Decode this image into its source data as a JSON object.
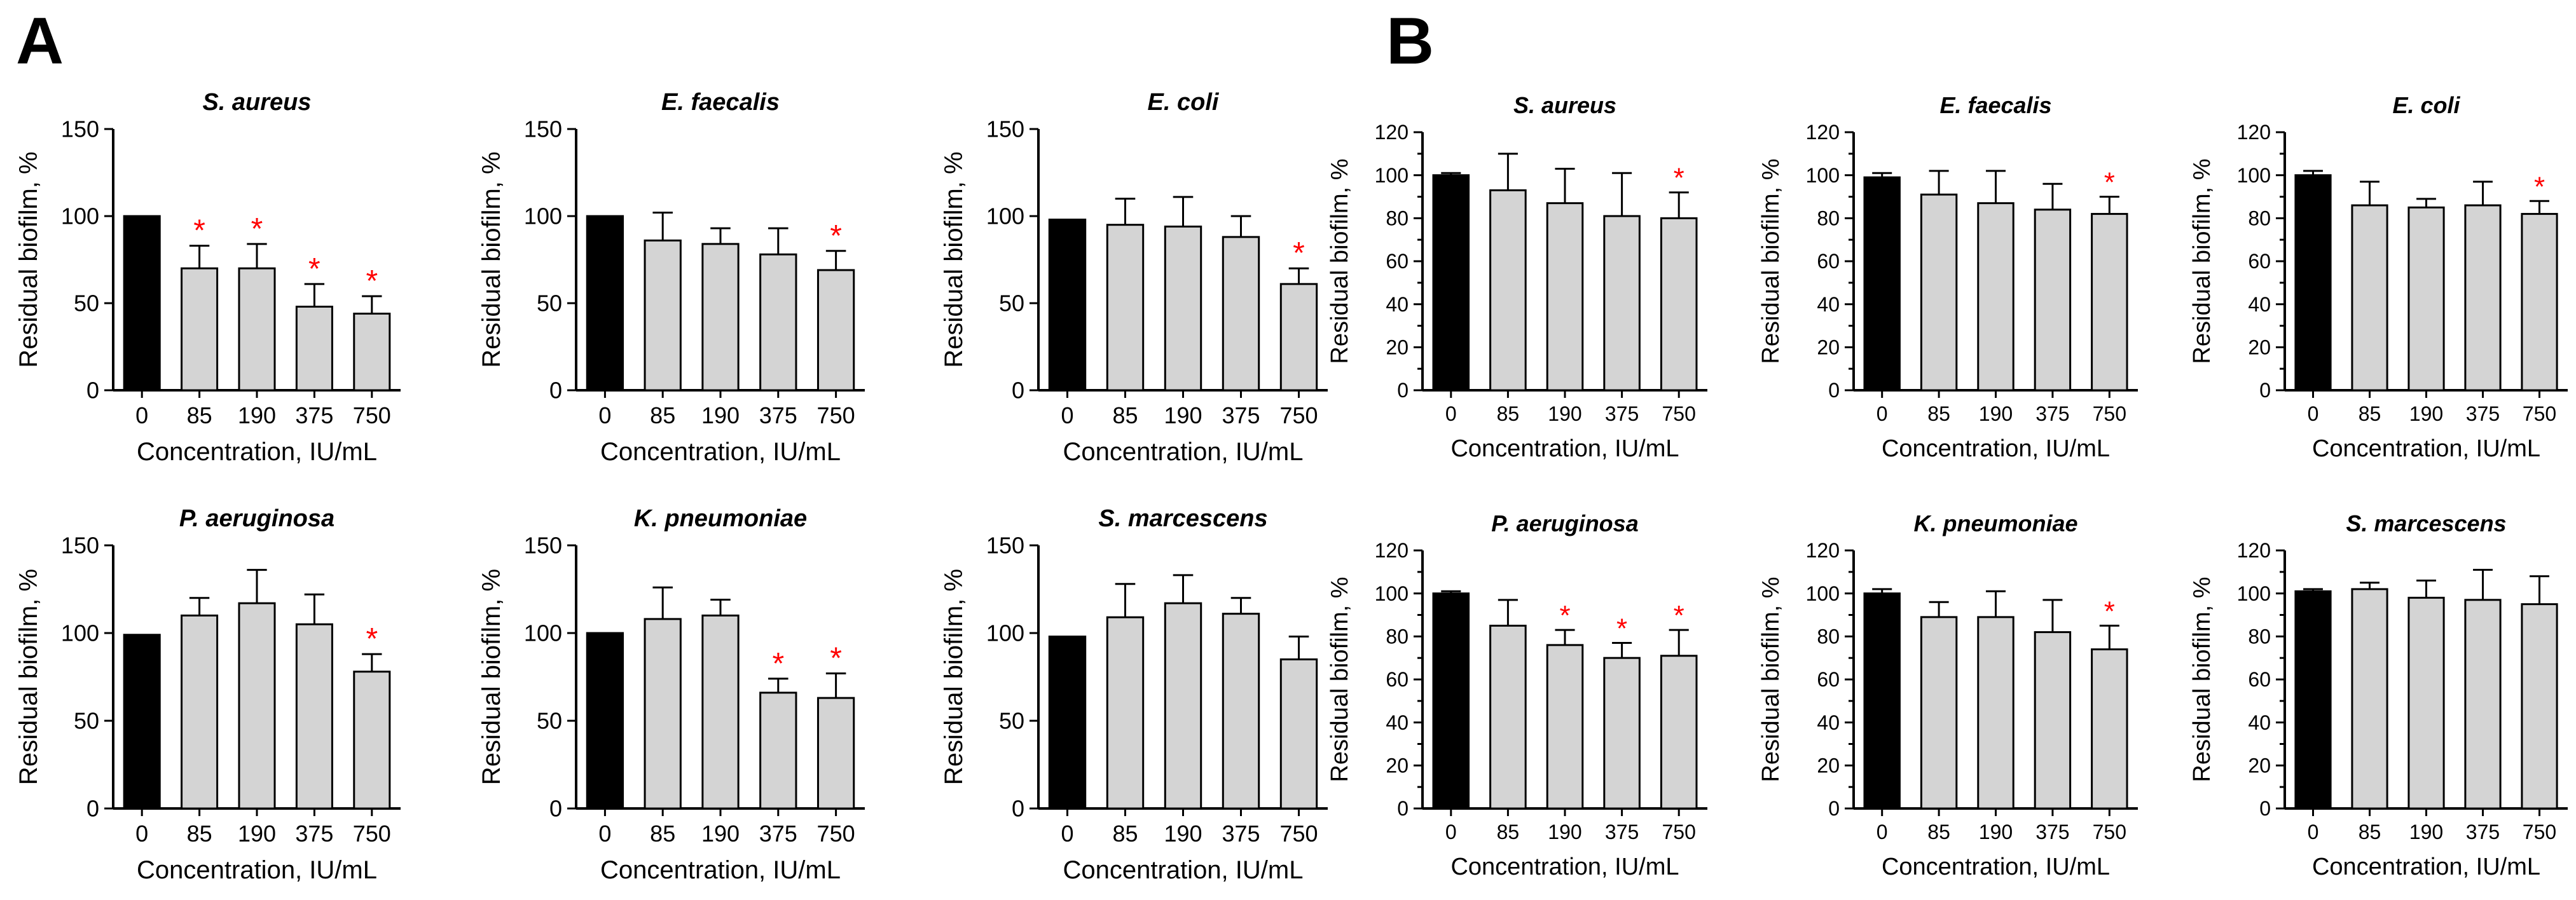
{
  "panels": [
    {
      "letter": "A"
    },
    {
      "letter": "B"
    }
  ],
  "colors": {
    "control_bar": "#000000",
    "treatment_bar": "#d4d4d4",
    "bar_outline": "#000000",
    "significance": "#ff0000",
    "axis": "#000000"
  },
  "chart_data": [
    {
      "panel": "A",
      "type": "bar",
      "title": "S. aureus",
      "xlabel": "Concentration, IU/mL",
      "ylabel": "Residual biofilm, %",
      "categories": [
        "0",
        "85",
        "190",
        "375",
        "750"
      ],
      "values": [
        100,
        70,
        70,
        48,
        44
      ],
      "errors": [
        0,
        13,
        14,
        13,
        10
      ],
      "significant": [
        false,
        true,
        true,
        true,
        true
      ],
      "ylim": [
        0,
        150
      ],
      "yticks": [
        0,
        50,
        100,
        150
      ]
    },
    {
      "panel": "A",
      "type": "bar",
      "title": "E. faecalis",
      "xlabel": "Concentration, IU/mL",
      "ylabel": "Residual biofilm, %",
      "categories": [
        "0",
        "85",
        "190",
        "375",
        "750"
      ],
      "values": [
        100,
        86,
        84,
        78,
        69
      ],
      "errors": [
        0,
        16,
        9,
        15,
        11
      ],
      "significant": [
        false,
        false,
        false,
        false,
        true
      ],
      "ylim": [
        0,
        150
      ],
      "yticks": [
        0,
        50,
        100,
        150
      ]
    },
    {
      "panel": "A",
      "type": "bar",
      "title": "E. coli",
      "xlabel": "Concentration, IU/mL",
      "ylabel": "Residual biofilm, %",
      "categories": [
        "0",
        "85",
        "190",
        "375",
        "750"
      ],
      "values": [
        98,
        95,
        94,
        88,
        61
      ],
      "errors": [
        0,
        15,
        17,
        12,
        9
      ],
      "significant": [
        false,
        false,
        false,
        false,
        true
      ],
      "ylim": [
        0,
        150
      ],
      "yticks": [
        0,
        50,
        100,
        150
      ]
    },
    {
      "panel": "A",
      "type": "bar",
      "title": "P. aeruginosa",
      "xlabel": "Concentration, IU/mL",
      "ylabel": "Residual biofilm, %",
      "categories": [
        "0",
        "85",
        "190",
        "375",
        "750"
      ],
      "values": [
        99,
        110,
        117,
        105,
        78
      ],
      "errors": [
        0,
        10,
        19,
        17,
        10
      ],
      "significant": [
        false,
        false,
        false,
        false,
        true
      ],
      "ylim": [
        0,
        150
      ],
      "yticks": [
        0,
        50,
        100,
        150
      ]
    },
    {
      "panel": "A",
      "type": "bar",
      "title": "K. pneumoniae",
      "xlabel": "Concentration, IU/mL",
      "ylabel": "Residual biofilm, %",
      "categories": [
        "0",
        "85",
        "190",
        "375",
        "750"
      ],
      "values": [
        100,
        108,
        110,
        66,
        63
      ],
      "errors": [
        0,
        18,
        9,
        8,
        14
      ],
      "significant": [
        false,
        false,
        false,
        true,
        true
      ],
      "ylim": [
        0,
        150
      ],
      "yticks": [
        0,
        50,
        100,
        150
      ]
    },
    {
      "panel": "A",
      "type": "bar",
      "title": "S. marcescens",
      "xlabel": "Concentration, IU/mL",
      "ylabel": "Residual biofilm, %",
      "categories": [
        "0",
        "85",
        "190",
        "375",
        "750"
      ],
      "values": [
        98,
        109,
        117,
        111,
        85
      ],
      "errors": [
        0,
        19,
        16,
        9,
        13
      ],
      "significant": [
        false,
        false,
        false,
        false,
        false
      ],
      "ylim": [
        0,
        150
      ],
      "yticks": [
        0,
        50,
        100,
        150
      ]
    },
    {
      "panel": "B",
      "type": "bar",
      "title": "S. aureus",
      "xlabel": "Concentration, IU/mL",
      "ylabel": "Residual biofilm, %",
      "categories": [
        "0",
        "85",
        "190",
        "375",
        "750"
      ],
      "values": [
        100,
        93,
        87,
        81,
        80
      ],
      "errors": [
        1,
        17,
        16,
        20,
        12
      ],
      "significant": [
        false,
        false,
        false,
        false,
        true
      ],
      "ylim": [
        0,
        120
      ],
      "yticks": [
        0,
        10,
        20,
        30,
        40,
        50,
        60,
        70,
        80,
        90,
        100,
        110,
        120
      ],
      "tick_labels": [
        0,
        20,
        40,
        60,
        80,
        100,
        120
      ]
    },
    {
      "panel": "B",
      "type": "bar",
      "title": "E. faecalis",
      "xlabel": "Concentration, IU/mL",
      "ylabel": "Residual biofilm, %",
      "categories": [
        "0",
        "85",
        "190",
        "375",
        "750"
      ],
      "values": [
        99,
        91,
        87,
        84,
        82
      ],
      "errors": [
        2,
        11,
        15,
        12,
        8
      ],
      "significant": [
        false,
        false,
        false,
        false,
        true
      ],
      "ylim": [
        0,
        120
      ],
      "yticks": [
        0,
        10,
        20,
        30,
        40,
        50,
        60,
        70,
        80,
        90,
        100,
        110,
        120
      ],
      "tick_labels": [
        0,
        20,
        40,
        60,
        80,
        100,
        120
      ]
    },
    {
      "panel": "B",
      "type": "bar",
      "title": "E. coli",
      "xlabel": "Concentration, IU/mL",
      "ylabel": "Residual biofilm, %",
      "categories": [
        "0",
        "85",
        "190",
        "375",
        "750"
      ],
      "values": [
        100,
        86,
        85,
        86,
        82
      ],
      "errors": [
        2,
        11,
        4,
        11,
        6
      ],
      "significant": [
        false,
        false,
        false,
        false,
        true
      ],
      "ylim": [
        0,
        120
      ],
      "yticks": [
        0,
        10,
        20,
        30,
        40,
        50,
        60,
        70,
        80,
        90,
        100,
        110,
        120
      ],
      "tick_labels": [
        0,
        20,
        40,
        60,
        80,
        100,
        120
      ]
    },
    {
      "panel": "B",
      "type": "bar",
      "title": "P. aeruginosa",
      "xlabel": "Concentration, IU/mL",
      "ylabel": "Residual biofilm, %",
      "categories": [
        "0",
        "85",
        "190",
        "375",
        "750"
      ],
      "values": [
        100,
        85,
        76,
        70,
        71
      ],
      "errors": [
        1,
        12,
        7,
        7,
        12
      ],
      "significant": [
        false,
        false,
        true,
        true,
        true
      ],
      "ylim": [
        0,
        120
      ],
      "yticks": [
        0,
        10,
        20,
        30,
        40,
        50,
        60,
        70,
        80,
        90,
        100,
        110,
        120
      ],
      "tick_labels": [
        0,
        20,
        40,
        60,
        80,
        100,
        120
      ]
    },
    {
      "panel": "B",
      "type": "bar",
      "title": "K. pneumoniae",
      "xlabel": "Concentration, IU/mL",
      "ylabel": "Residual biofilm, %",
      "categories": [
        "0",
        "85",
        "190",
        "375",
        "750"
      ],
      "values": [
        100,
        89,
        89,
        82,
        74
      ],
      "errors": [
        2,
        7,
        12,
        15,
        11
      ],
      "significant": [
        false,
        false,
        false,
        false,
        true
      ],
      "ylim": [
        0,
        120
      ],
      "yticks": [
        0,
        10,
        20,
        30,
        40,
        50,
        60,
        70,
        80,
        90,
        100,
        110,
        120
      ],
      "tick_labels": [
        0,
        20,
        40,
        60,
        80,
        100,
        120
      ]
    },
    {
      "panel": "B",
      "type": "bar",
      "title": "S. marcescens",
      "xlabel": "Concentration, IU/mL",
      "ylabel": "Residual biofilm, %",
      "categories": [
        "0",
        "85",
        "190",
        "375",
        "750"
      ],
      "values": [
        101,
        102,
        98,
        97,
        95
      ],
      "errors": [
        1,
        3,
        8,
        14,
        13
      ],
      "significant": [
        false,
        false,
        false,
        false,
        false
      ],
      "ylim": [
        0,
        120
      ],
      "yticks": [
        0,
        10,
        20,
        30,
        40,
        50,
        60,
        70,
        80,
        90,
        100,
        110,
        120
      ],
      "tick_labels": [
        0,
        20,
        40,
        60,
        80,
        100,
        120
      ]
    }
  ]
}
